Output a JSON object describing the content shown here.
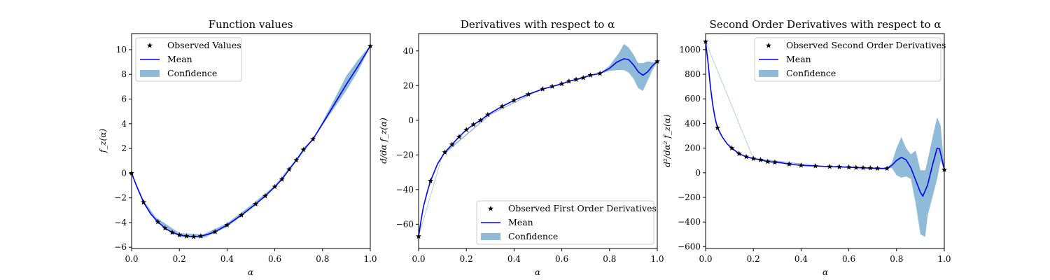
{
  "chart_data": [
    {
      "type": "line",
      "title": "Function values",
      "xlabel": "α",
      "ylabel": "f_z(α)",
      "xlim": [
        0,
        1
      ],
      "ylim": [
        -6.1,
        11.3
      ],
      "xticks": [
        0,
        0.2,
        0.4,
        0.6,
        0.8,
        1
      ],
      "xtick_labels": [
        "0.0",
        "0.2",
        "0.4",
        "0.6",
        "0.8",
        "1.0"
      ],
      "yticks": [
        -6,
        -4,
        -2,
        0,
        2,
        4,
        6,
        8,
        10
      ],
      "ytick_labels": [
        "−6",
        "−4",
        "−2",
        "0",
        "2",
        "4",
        "6",
        "8",
        "10"
      ],
      "legend": [
        "Observed Values",
        "Mean",
        "Confidence"
      ],
      "legend_position": "top-left",
      "observed": {
        "x": [
          0.0,
          0.05,
          0.11,
          0.14,
          0.17,
          0.2,
          0.23,
          0.26,
          0.29,
          0.35,
          0.4,
          0.46,
          0.52,
          0.56,
          0.6,
          0.63,
          0.66,
          0.69,
          0.72,
          0.76,
          1.0
        ],
        "y": [
          0.0,
          -2.35,
          -3.95,
          -4.45,
          -4.8,
          -5.0,
          -5.1,
          -5.15,
          -5.1,
          -4.75,
          -4.2,
          -3.4,
          -2.5,
          -1.85,
          -1.1,
          -0.5,
          0.3,
          1.05,
          1.9,
          2.75,
          10.3
        ]
      },
      "mean": {
        "x": [
          0.0,
          0.02,
          0.05,
          0.08,
          0.11,
          0.14,
          0.17,
          0.2,
          0.23,
          0.26,
          0.29,
          0.32,
          0.35,
          0.4,
          0.46,
          0.52,
          0.56,
          0.6,
          0.63,
          0.66,
          0.69,
          0.72,
          0.76,
          0.8,
          0.85,
          0.9,
          0.95,
          1.0
        ],
        "y": [
          0.0,
          -1.0,
          -2.35,
          -3.3,
          -3.95,
          -4.45,
          -4.8,
          -5.0,
          -5.1,
          -5.15,
          -5.1,
          -4.95,
          -4.75,
          -4.2,
          -3.4,
          -2.5,
          -1.85,
          -1.1,
          -0.5,
          0.3,
          1.05,
          1.9,
          2.75,
          4.0,
          5.6,
          7.2,
          8.7,
          10.3
        ]
      },
      "confidence": {
        "x": [
          0.0,
          0.05,
          0.1,
          0.2,
          0.3,
          0.4,
          0.5,
          0.6,
          0.7,
          0.76,
          0.8,
          0.85,
          0.9,
          0.95,
          1.0
        ],
        "lower": [
          -0.05,
          -2.5,
          -3.85,
          -5.15,
          -5.25,
          -4.35,
          -2.9,
          -1.2,
          1.2,
          2.7,
          3.9,
          5.3,
          6.7,
          8.3,
          10.25
        ],
        "upper": [
          0.05,
          -2.2,
          -3.55,
          -4.85,
          -4.95,
          -4.05,
          -2.6,
          -1.0,
          1.4,
          2.8,
          4.2,
          6.0,
          7.9,
          9.2,
          10.35
        ]
      }
    },
    {
      "type": "line",
      "title": "Derivatives with respect to α",
      "xlabel": "α",
      "ylabel": "d/dα f_z(α)",
      "xlim": [
        0,
        1
      ],
      "ylim": [
        -74,
        50
      ],
      "xticks": [
        0,
        0.2,
        0.4,
        0.6,
        0.8,
        1
      ],
      "xtick_labels": [
        "0.0",
        "0.2",
        "0.4",
        "0.6",
        "0.8",
        "1.0"
      ],
      "yticks": [
        -60,
        -40,
        -20,
        0,
        20,
        40
      ],
      "ytick_labels": [
        "−60",
        "−40",
        "−20",
        "0",
        "20",
        "40"
      ],
      "legend": [
        "Observed First Order Derivatives",
        "Mean",
        "Confidence"
      ],
      "legend_position": "bottom-right",
      "observed": {
        "x": [
          0.0,
          0.05,
          0.11,
          0.14,
          0.17,
          0.2,
          0.23,
          0.26,
          0.29,
          0.35,
          0.4,
          0.46,
          0.52,
          0.56,
          0.6,
          0.63,
          0.66,
          0.69,
          0.72,
          0.76,
          1.0
        ],
        "y": [
          -67,
          -35,
          -18.5,
          -14,
          -9.5,
          -5.5,
          -2.5,
          0,
          3.2,
          8,
          11.5,
          15,
          18,
          19.5,
          21,
          22.5,
          23.5,
          24.5,
          26,
          27,
          34
        ]
      },
      "mean": {
        "x": [
          0.0,
          0.01,
          0.02,
          0.035,
          0.05,
          0.08,
          0.11,
          0.14,
          0.17,
          0.2,
          0.23,
          0.26,
          0.29,
          0.35,
          0.4,
          0.46,
          0.52,
          0.56,
          0.6,
          0.63,
          0.66,
          0.69,
          0.72,
          0.76,
          0.8,
          0.83,
          0.86,
          0.88,
          0.9,
          0.92,
          0.94,
          0.96,
          0.98,
          1.0
        ],
        "y": [
          -67,
          -58,
          -50,
          -42,
          -35,
          -25,
          -18.5,
          -14,
          -9.5,
          -5.5,
          -2.5,
          0,
          3.2,
          8,
          11.5,
          15,
          18,
          19.5,
          21,
          22.5,
          23.5,
          24.5,
          26,
          27,
          30,
          33.5,
          35.5,
          35,
          32,
          28,
          26,
          28,
          31.5,
          34
        ]
      },
      "confidence": {
        "x": [
          0.0,
          0.1,
          0.3,
          0.5,
          0.7,
          0.76,
          0.8,
          0.84,
          0.86,
          0.88,
          0.9,
          0.92,
          0.94,
          0.96,
          0.98,
          1.0
        ],
        "lower": [
          -67.5,
          -20.5,
          3.0,
          16.7,
          25.3,
          26.8,
          28.5,
          29.0,
          29.0,
          27.5,
          24.0,
          18.5,
          17.0,
          23.0,
          29.0,
          33.8
        ],
        "upper": [
          -66.5,
          -19.5,
          3.6,
          17.3,
          25.7,
          27.2,
          31.5,
          39.0,
          44.0,
          42.0,
          38.0,
          33.0,
          33.0,
          34.0,
          33.5,
          34.2
        ]
      }
    },
    {
      "type": "line",
      "title": "Second Order Derivatives with respect to α",
      "xlabel": "α",
      "ylabel": "d²/dα² f_z(α)",
      "xlim": [
        0,
        1
      ],
      "ylim": [
        -615,
        1130
      ],
      "xticks": [
        0,
        0.2,
        0.4,
        0.6,
        0.8,
        1
      ],
      "xtick_labels": [
        "0.0",
        "0.2",
        "0.4",
        "0.6",
        "0.8",
        "1.0"
      ],
      "yticks": [
        -600,
        -400,
        -200,
        0,
        200,
        400,
        600,
        800,
        1000
      ],
      "ytick_labels": [
        "−600",
        "−400",
        "−200",
        "0",
        "200",
        "400",
        "600",
        "800",
        "1000"
      ],
      "legend": [
        "Observed Second Order Derivatives",
        "Mean",
        "Confidence"
      ],
      "legend_position": "top-right",
      "observed": {
        "x": [
          0.0,
          0.05,
          0.11,
          0.14,
          0.17,
          0.2,
          0.23,
          0.26,
          0.29,
          0.35,
          0.4,
          0.46,
          0.52,
          0.56,
          0.6,
          0.63,
          0.66,
          0.69,
          0.72,
          0.76,
          1.0
        ],
        "y": [
          1065,
          365,
          200,
          155,
          130,
          115,
          105,
          90,
          85,
          70,
          60,
          55,
          50,
          48,
          45,
          42,
          40,
          38,
          35,
          35,
          25
        ]
      },
      "mean": {
        "x": [
          0.0,
          0.01,
          0.02,
          0.03,
          0.04,
          0.05,
          0.07,
          0.09,
          0.11,
          0.14,
          0.17,
          0.2,
          0.23,
          0.26,
          0.29,
          0.32,
          0.35,
          0.4,
          0.46,
          0.52,
          0.56,
          0.6,
          0.63,
          0.66,
          0.69,
          0.72,
          0.76,
          0.78,
          0.8,
          0.82,
          0.84,
          0.86,
          0.88,
          0.9,
          0.91,
          0.93,
          0.95,
          0.97,
          0.98,
          1.0
        ],
        "y": [
          1065,
          900,
          700,
          550,
          440,
          365,
          290,
          235,
          200,
          155,
          130,
          115,
          105,
          90,
          85,
          80,
          70,
          60,
          55,
          50,
          48,
          45,
          42,
          40,
          38,
          35,
          35,
          60,
          100,
          125,
          105,
          40,
          -60,
          -160,
          -190,
          -100,
          60,
          200,
          195,
          25
        ]
      },
      "confidence": {
        "x": [
          0.0,
          0.2,
          0.5,
          0.76,
          0.78,
          0.8,
          0.82,
          0.84,
          0.86,
          0.88,
          0.9,
          0.92,
          0.93,
          0.95,
          0.97,
          0.985,
          1.0
        ],
        "lower": [
          1060,
          110,
          47,
          30,
          40,
          -20,
          -40,
          -30,
          -50,
          -250,
          -500,
          -520,
          -350,
          -200,
          -50,
          100,
          20
        ],
        "upper": [
          1070,
          120,
          53,
          40,
          80,
          200,
          290,
          200,
          150,
          180,
          20,
          20,
          100,
          280,
          450,
          380,
          30
        ]
      }
    }
  ],
  "colors": {
    "mean": "#0000ff",
    "confidence": "#1f77b4",
    "markers": "#000000"
  }
}
